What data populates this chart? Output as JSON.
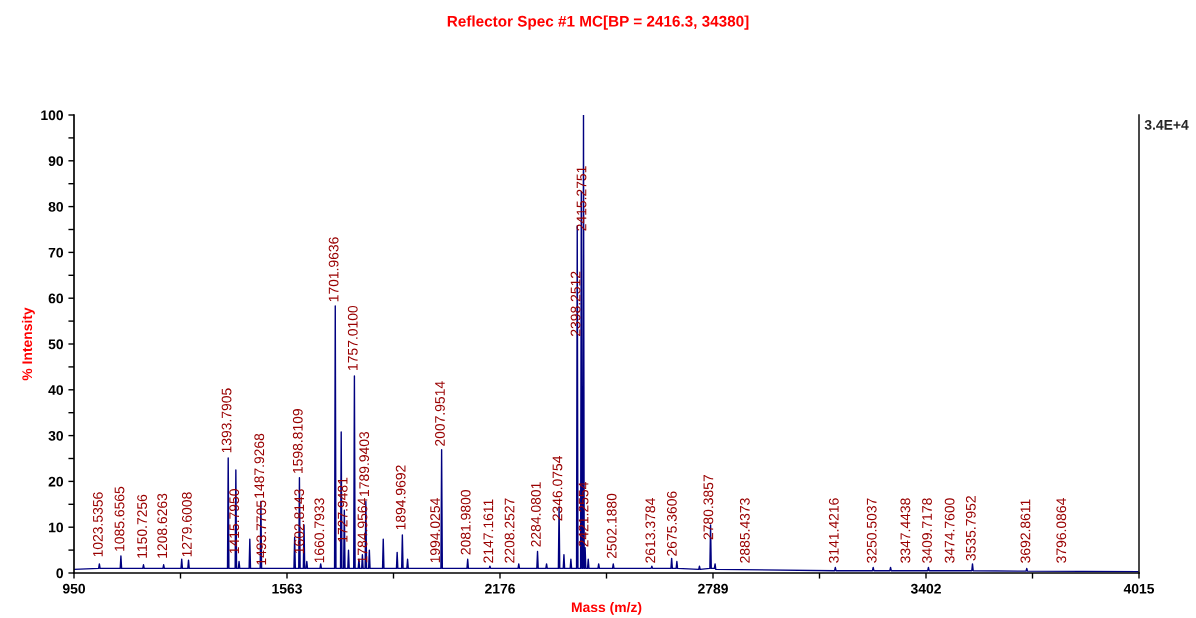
{
  "chart_data": {
    "type": "line",
    "title": "Reflector Spec #1 MC[BP = 2416.3, 34380]",
    "xlabel": "Mass (m/z)",
    "ylabel": "% Intensity",
    "xlim": [
      950,
      4015
    ],
    "xticks": [
      950,
      {
        "value": 1256.5,
        "label": null
      },
      1563,
      {
        "value": 1869.5,
        "label": null
      },
      2176,
      {
        "value": 2482.5,
        "label": null
      },
      2789,
      {
        "value": 3095.5,
        "label": null
      },
      3402,
      {
        "value": 3708.5,
        "label": null
      },
      4015
    ],
    "ylim": [
      0,
      100
    ],
    "yticks": [
      0,
      {
        "value": 5,
        "label": null
      },
      10,
      {
        "value": 15,
        "label": null
      },
      20,
      {
        "value": 25,
        "label": null
      },
      30,
      {
        "value": 35,
        "label": null
      },
      40,
      {
        "value": 45,
        "label": null
      },
      50,
      {
        "value": 55,
        "label": null
      },
      60,
      {
        "value": 65,
        "label": null
      },
      70,
      {
        "value": 75,
        "label": null
      },
      80,
      {
        "value": 85,
        "label": null
      },
      90,
      {
        "value": 95,
        "label": null
      },
      100
    ],
    "grid": false,
    "legend": false,
    "marker": "none",
    "line_style": "solid",
    "series": [
      {
        "color": "#000080",
        "x": [
          950,
          1021,
          1023,
          1025,
          1083,
          1085,
          1087,
          1148,
          1150,
          1152,
          1206,
          1208,
          1210,
          1258,
          1260,
          1262,
          1277.6,
          1279.6,
          1281.6,
          1391.8,
          1393.8,
          1395.8,
          1413.8,
          1415.8,
          1417.8,
          1423,
          1425,
          1427,
          1454,
          1456,
          1458,
          1485.9,
          1487.9,
          1489.9,
          1583,
          1585,
          1587,
          1596.8,
          1598.8,
          1600.8,
          1610,
          1612,
          1614,
          1618,
          1620,
          1622,
          1658,
          1660,
          1662,
          1699.9,
          1701.9,
          1703.9,
          1717,
          1719,
          1721,
          1726,
          1728,
          1730,
          1738,
          1740,
          1742,
          1755,
          1757,
          1759,
          1768,
          1770,
          1772,
          1778,
          1780,
          1782,
          1787.9,
          1789.9,
          1791.9,
          1798,
          1800,
          1802,
          1838,
          1840,
          1842,
          1878,
          1880,
          1882,
          1893,
          1895,
          1897,
          1908,
          1910,
          1912,
          2006,
          2008,
          2010,
          2081,
          2083,
          2085,
          2145,
          2147,
          2149,
          2228,
          2230,
          2232,
          2282,
          2284,
          2286,
          2308,
          2310,
          2312,
          2344,
          2346,
          2348,
          2358,
          2360,
          2362,
          2378,
          2380,
          2382,
          2396.3,
          2398.3,
          2400.3,
          2408,
          2410,
          2412,
          2414.3,
          2416.3,
          2418.3,
          2419,
          2421,
          2423,
          2428,
          2430,
          2432,
          2458,
          2460,
          2462,
          2500,
          2502,
          2504,
          2611,
          2613,
          2615,
          2668,
          2670,
          2672,
          2683,
          2685,
          2687,
          2748,
          2750,
          2752,
          2780,
          2782,
          2784,
          2793,
          2795,
          2797,
          3139,
          3141,
          3143,
          3248,
          3250,
          3252,
          3298,
          3300,
          3302,
          3407,
          3409,
          3411,
          3533.8,
          3535.8,
          3537.8,
          3690,
          3692,
          3694,
          4015
        ],
        "values": [
          0.8,
          1,
          2,
          1,
          1,
          3.7,
          1,
          1,
          1.8,
          1,
          1,
          1.8,
          1,
          1,
          3,
          1,
          1,
          2.8,
          1,
          1,
          25.1,
          1,
          1,
          22.5,
          1,
          1,
          2.5,
          1,
          1,
          7.4,
          1,
          1,
          15.6,
          1,
          1,
          7.8,
          1,
          1,
          20.8,
          1,
          1,
          10.5,
          1,
          1,
          2.5,
          1,
          1,
          2,
          1,
          1,
          58.3,
          1,
          1,
          30.8,
          1,
          1,
          13.7,
          1,
          1,
          5,
          1,
          1,
          43,
          1,
          1,
          3,
          1,
          1,
          4,
          1,
          1,
          15.6,
          1,
          1,
          5,
          1,
          1,
          7.4,
          1,
          1,
          4.5,
          1,
          1,
          8.3,
          1,
          1,
          3,
          1,
          1,
          26.9,
          1,
          1,
          3,
          1,
          1,
          1.5,
          1,
          1,
          2,
          1,
          1,
          4.7,
          1,
          1,
          2,
          1,
          1,
          14.4,
          1,
          1,
          4,
          1,
          1,
          3,
          1,
          1,
          75.8,
          1,
          1,
          83.3,
          1,
          1,
          100,
          1,
          1,
          5.5,
          1,
          1,
          3,
          1,
          1,
          2,
          1,
          1,
          2,
          1,
          1,
          1.5,
          1,
          1,
          3.2,
          1,
          1,
          2.5,
          1,
          0.8,
          1.5,
          0.8,
          1,
          10.5,
          1,
          1,
          2,
          0.8,
          0.5,
          1.2,
          0.5,
          0.5,
          1.2,
          0.5,
          0.5,
          1.2,
          0.5,
          0.5,
          1.2,
          0.5,
          0.5,
          2,
          0.5,
          0.4,
          1,
          0.4,
          0.3
        ]
      }
    ],
    "annotations": [
      "3.4E+4",
      {
        "text": "1023.5356",
        "x": 1023.5356,
        "y": 2.8
      },
      {
        "text": "1085.6565",
        "x": 1085.6565,
        "y": 4
      },
      {
        "text": "1150.7256",
        "x": 1150.7256,
        "y": 2.5
      },
      {
        "text": "1208.6263",
        "x": 1208.6263,
        "y": 2.5
      },
      {
        "text": "1279.6008",
        "x": 1279.6008,
        "y": 2.8
      },
      {
        "text": "1393.7905",
        "x": 1393.7905,
        "y": 25.5
      },
      {
        "text": "1415.7950",
        "x": 1415.795,
        "y": 3.5
      },
      {
        "text": "1487.9268",
        "x": 1487.9268,
        "y": 15.6
      },
      {
        "text": "1493.7705",
        "x": 1493.7705,
        "y": 1
      },
      {
        "text": "1598.8109",
        "x": 1598.8109,
        "y": 21
      },
      {
        "text": "1602.8143",
        "x": 1602.8143,
        "y": 3.5
      },
      {
        "text": "1660.7933",
        "x": 1660.7933,
        "y": 1.5
      },
      {
        "text": "1701.9636",
        "x": 1701.9636,
        "y": 58.5
      },
      {
        "text": "1727.9481",
        "x": 1727.9481,
        "y": 6
      },
      {
        "text": "1757.0100",
        "x": 1757.01,
        "y": 43.5
      },
      {
        "text": "1784.9564",
        "x": 1784.9564,
        "y": 1.5
      },
      {
        "text": "1789.9403",
        "x": 1789.9403,
        "y": 16
      },
      {
        "text": "1894.9692",
        "x": 1894.9692,
        "y": 8.7
      },
      {
        "text": "1994.0254",
        "x": 1994.0254,
        "y": 1.5
      },
      {
        "text": "2007.9514",
        "x": 2007.9514,
        "y": 27
      },
      {
        "text": "2081.9800",
        "x": 2081.98,
        "y": 3.3
      },
      {
        "text": "2147.1611",
        "x": 2147.1611,
        "y": 1.5
      },
      {
        "text": "2208.2527",
        "x": 2208.2527,
        "y": 1.5
      },
      {
        "text": "2284.0801",
        "x": 2284.0801,
        "y": 5
      },
      {
        "text": "2346.0754",
        "x": 2346.0754,
        "y": 10.7
      },
      {
        "text": "2398.2512",
        "x": 2398.2512,
        "y": 51
      },
      {
        "text": "2415.2751",
        "x": 2415.2751,
        "y": 74
      },
      {
        "text": "2421.2554",
        "x": 2421.2554,
        "y": 5
      },
      {
        "text": "2502.1880",
        "x": 2502.188,
        "y": 2.5
      },
      {
        "text": "2613.3784",
        "x": 2613.3784,
        "y": 1.5
      },
      {
        "text": "2675.3606",
        "x": 2675.3606,
        "y": 3
      },
      {
        "text": "2780.3857",
        "x": 2780.3857,
        "y": 6.6
      },
      {
        "text": "2885.4373",
        "x": 2885.4373,
        "y": 1.5
      },
      {
        "text": "3141.4216",
        "x": 3141.4216,
        "y": 1.5
      },
      {
        "text": "3250.5037",
        "x": 3250.5037,
        "y": 1.5
      },
      {
        "text": "3347.4438",
        "x": 3347.4438,
        "y": 1.5
      },
      {
        "text": "3409.7178",
        "x": 3409.7178,
        "y": 1.5
      },
      {
        "text": "3474.7600",
        "x": 3474.76,
        "y": 1.5
      },
      {
        "text": "3535.7952",
        "x": 3535.7952,
        "y": 2
      },
      {
        "text": "3692.8611",
        "x": 3692.8611,
        "y": 1.5
      },
      {
        "text": "3796.0864",
        "x": 3796.0864,
        "y": 1.5
      }
    ]
  }
}
